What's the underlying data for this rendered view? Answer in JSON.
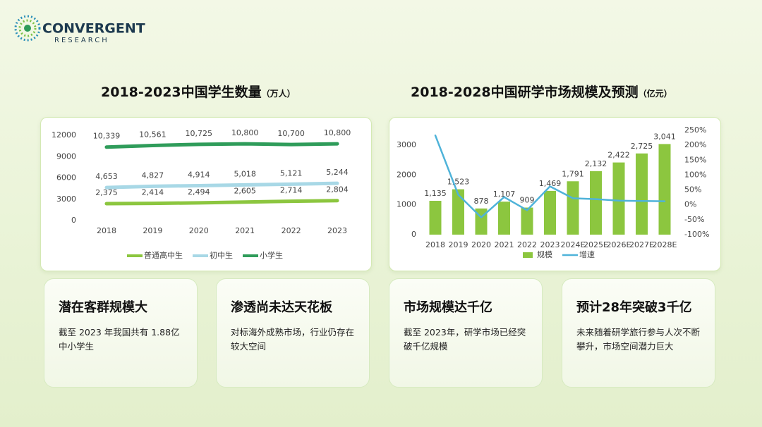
{
  "logo": {
    "name": "CONVERGENT",
    "sub": "RESEARCH"
  },
  "chart_data": [
    {
      "type": "line",
      "title": "2018-2023中国学生数量",
      "unit": "（万人）",
      "categories": [
        "2018",
        "2019",
        "2020",
        "2021",
        "2022",
        "2023"
      ],
      "ylim": [
        0,
        12000
      ],
      "yticks": [
        0,
        3000,
        6000,
        9000,
        12000
      ],
      "series": [
        {
          "name": "普通高中生",
          "color": "#8cc63f",
          "values": [
            2375,
            2414,
            2494,
            2605,
            2714,
            2804
          ],
          "value_labels": [
            "2,375",
            "2,414",
            "2,494",
            "2,605",
            "2,714",
            "2,804"
          ]
        },
        {
          "name": "初中生",
          "color": "#a8d8e6",
          "values": [
            4653,
            4827,
            4914,
            5018,
            5121,
            5244
          ],
          "value_labels": [
            "4,653",
            "4,827",
            "4,914",
            "5,018",
            "5,121",
            "5,244"
          ]
        },
        {
          "name": "小学生",
          "color": "#2f9c5a",
          "values": [
            10339,
            10561,
            10725,
            10800,
            10700,
            10800
          ],
          "value_labels": [
            "10,339",
            "10,561",
            "10,725",
            "10,800",
            "10,700",
            "10,800"
          ]
        }
      ],
      "legend": "bottom"
    },
    {
      "type": "bar",
      "title": "2018-2028中国研学市场规模及预测",
      "unit": "（亿元）",
      "categories": [
        "2018",
        "2019",
        "2020",
        "2021",
        "2022",
        "2023",
        "2024E",
        "2025E",
        "2026E",
        "2027E",
        "2028E"
      ],
      "ylim": [
        0,
        3500
      ],
      "yticks": [
        0,
        1000,
        2000,
        3000
      ],
      "y2lim": [
        -100,
        250
      ],
      "y2ticks": [
        {
          "value": -100,
          "label": "-100%"
        },
        {
          "value": -50,
          "label": "-50%"
        },
        {
          "value": 0,
          "label": "0%"
        },
        {
          "value": 50,
          "label": "50%"
        },
        {
          "value": 100,
          "label": "100%"
        },
        {
          "value": 150,
          "label": "150%"
        },
        {
          "value": 200,
          "label": "200%"
        },
        {
          "value": 250,
          "label": "250%"
        }
      ],
      "series": [
        {
          "name": "规模",
          "color": "#8cc63f",
          "values": [
            1135,
            1523,
            878,
            1107,
            909,
            1469,
            1791,
            2132,
            2422,
            2725,
            3041
          ],
          "value_labels": [
            "1,135",
            "1,523",
            "878",
            "1,107",
            "909",
            "1,469",
            "1,791",
            "2,132",
            "2,422",
            "2,725",
            "3,041"
          ]
        },
        {
          "name": "增速",
          "color": "#4fb3d9",
          "axis": "y2",
          "type": "line",
          "values": [
            233,
            34,
            -42,
            26,
            -18,
            62,
            22,
            19,
            14,
            13,
            12
          ]
        }
      ],
      "legend": "bottom"
    }
  ],
  "cards": [
    {
      "title": "潜在客群规模大",
      "text": "截至 2023 年我国共有 1.88亿中小学生"
    },
    {
      "title": "渗透尚未达天花板",
      "text": "对标海外成熟市场，行业仍存在较大空间"
    },
    {
      "title": "市场规模达千亿",
      "text": "截至 2023年，研学市场已经突破千亿规模"
    },
    {
      "title": "预计28年突破3千亿",
      "text": "未来随着研学旅行参与人次不断攀升，市场空间潜力巨大"
    }
  ]
}
